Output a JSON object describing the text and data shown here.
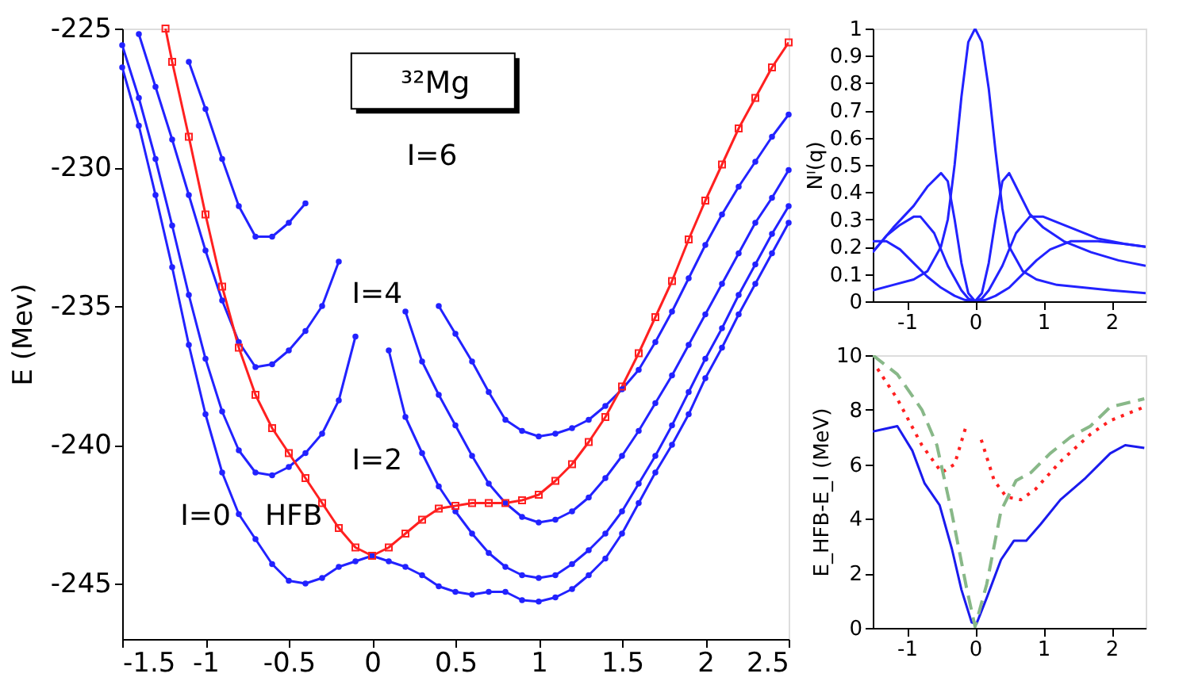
{
  "chart_data": [
    {
      "type": "line",
      "ylabel": "E (Mev)",
      "xlim": [
        -1.5,
        2.5
      ],
      "ylim": [
        -247,
        -225
      ],
      "xticks": [
        -1.5,
        -1,
        -0.5,
        0,
        0.5,
        1,
        1.5,
        2,
        2.5
      ],
      "yticks": [
        -245,
        -240,
        -235,
        -230,
        -225
      ],
      "grid": false,
      "legend": false,
      "line_style": "solid",
      "series": [
        {
          "color": "#2222ff",
          "marker": "circle",
          "x": [
            -1.5,
            -1.4,
            -1.3,
            -1.2,
            -1.1,
            -1.0,
            -0.9,
            -0.8,
            -0.7,
            -0.6,
            -0.5,
            -0.4,
            -0.3,
            -0.2,
            -0.1,
            0,
            0.1,
            0.2,
            0.3,
            0.4,
            0.5,
            0.6,
            0.7,
            0.8,
            0.9,
            1.0,
            1.1,
            1.2,
            1.3,
            1.4,
            1.5,
            1.6,
            1.7,
            1.8,
            1.9,
            2.0,
            2.1,
            2.2,
            2.3,
            2.4,
            2.5
          ],
          "values": [
            -226.4,
            -228.5,
            -231.0,
            -233.6,
            -236.4,
            -238.9,
            -241.0,
            -242.5,
            -243.4,
            -244.3,
            -244.9,
            -245.0,
            -244.8,
            -244.4,
            -244.2,
            -244.0,
            -244.2,
            -244.4,
            -244.7,
            -245.1,
            -245.3,
            -245.4,
            -245.3,
            -245.3,
            -245.6,
            -245.65,
            -245.5,
            -245.2,
            -244.7,
            -244.1,
            -243.2,
            -242.1,
            -241.0,
            -240.0,
            -238.9,
            -237.6,
            -236.5,
            -235.3,
            -234.2,
            -233.1,
            -232.0
          ]
        },
        {
          "color": "#2222ff",
          "marker": "circle",
          "x": [
            -1.5,
            -1.4,
            -1.3,
            -1.2,
            -1.1,
            -1.0,
            -0.9,
            -0.8,
            -0.7,
            -0.6,
            -0.5,
            -0.4,
            -0.3,
            -0.2,
            -0.1
          ],
          "values": [
            -225.6,
            -227.5,
            -229.7,
            -232.1,
            -234.6,
            -236.9,
            -238.8,
            -240.2,
            -241.0,
            -241.1,
            -240.8,
            -240.3,
            -239.6,
            -238.4,
            -236.1
          ]
        },
        {
          "color": "#2222ff",
          "marker": "circle",
          "x": [
            -1.4,
            -1.3,
            -1.2,
            -1.1,
            -1.0,
            -0.9,
            -0.8,
            -0.7,
            -0.6,
            -0.5,
            -0.4,
            -0.3,
            -0.2
          ],
          "values": [
            -225.2,
            -227.1,
            -229.0,
            -231.0,
            -233.0,
            -234.8,
            -236.3,
            -237.2,
            -237.1,
            -236.6,
            -235.9,
            -235.0,
            -233.4
          ]
        },
        {
          "color": "#2222ff",
          "marker": "circle",
          "x": [
            -1.1,
            -1.0,
            -0.9,
            -0.8,
            -0.7,
            -0.6,
            -0.5,
            -0.4
          ],
          "values": [
            -226.2,
            -227.9,
            -229.7,
            -231.4,
            -232.5,
            -232.5,
            -232.0,
            -231.3
          ]
        },
        {
          "color": "#2222ff",
          "marker": "circle",
          "x": [
            0.1,
            0.2,
            0.3,
            0.4,
            0.5,
            0.6,
            0.7,
            0.8,
            0.9,
            1.0,
            1.1,
            1.2,
            1.3,
            1.4,
            1.5,
            1.6,
            1.7,
            1.8,
            1.9,
            2.0,
            2.1,
            2.2,
            2.3,
            2.4,
            2.5
          ],
          "values": [
            -236.6,
            -239.0,
            -240.3,
            -241.5,
            -242.4,
            -243.2,
            -243.9,
            -244.4,
            -244.7,
            -244.8,
            -244.7,
            -244.3,
            -243.8,
            -243.2,
            -242.4,
            -241.4,
            -240.4,
            -239.3,
            -238.1,
            -236.9,
            -235.8,
            -234.6,
            -233.5,
            -232.4,
            -231.4
          ]
        },
        {
          "color": "#2222ff",
          "marker": "circle",
          "x": [
            0.2,
            0.3,
            0.4,
            0.5,
            0.6,
            0.7,
            0.8,
            0.9,
            1.0,
            1.1,
            1.2,
            1.3,
            1.4,
            1.5,
            1.6,
            1.7,
            1.8,
            1.9,
            2.0,
            2.1,
            2.2,
            2.3,
            2.4,
            2.5
          ],
          "values": [
            -235.2,
            -237.0,
            -238.2,
            -239.3,
            -240.4,
            -241.4,
            -242.1,
            -242.6,
            -242.8,
            -242.7,
            -242.4,
            -241.9,
            -241.2,
            -240.4,
            -239.5,
            -238.5,
            -237.5,
            -236.4,
            -235.3,
            -234.2,
            -233.1,
            -232.0,
            -231.1,
            -230.1
          ]
        },
        {
          "color": "#2222ff",
          "marker": "circle",
          "x": [
            0.4,
            0.5,
            0.6,
            0.7,
            0.8,
            0.9,
            1.0,
            1.1,
            1.2,
            1.3,
            1.4,
            1.5,
            1.6,
            1.7,
            1.8,
            1.9,
            2.0,
            2.1,
            2.2,
            2.3,
            2.4,
            2.5
          ],
          "values": [
            -235.0,
            -236.0,
            -237.0,
            -238.1,
            -239.1,
            -239.5,
            -239.7,
            -239.6,
            -239.4,
            -239.1,
            -238.6,
            -238.0,
            -237.3,
            -236.3,
            -235.2,
            -234.0,
            -232.8,
            -231.7,
            -230.7,
            -229.8,
            -228.9,
            -228.1
          ]
        },
        {
          "color": "#ff2020",
          "marker": "square",
          "x": [
            -1.24,
            -1.2,
            -1.1,
            -1.0,
            -0.9,
            -0.8,
            -0.7,
            -0.6,
            -0.5,
            -0.4,
            -0.3,
            -0.2,
            -0.1,
            0,
            0.1,
            0.2,
            0.3,
            0.4,
            0.5,
            0.6,
            0.7,
            0.8,
            0.9,
            1.0,
            1.1,
            1.2,
            1.3,
            1.4,
            1.5,
            1.6,
            1.7,
            1.8,
            1.9,
            2.0,
            2.1,
            2.2,
            2.3,
            2.4,
            2.5
          ],
          "values": [
            -225.0,
            -226.2,
            -228.9,
            -231.7,
            -234.3,
            -236.5,
            -238.2,
            -239.4,
            -240.3,
            -241.2,
            -242.1,
            -243.0,
            -243.7,
            -244.0,
            -243.7,
            -243.2,
            -242.7,
            -242.3,
            -242.2,
            -242.1,
            -242.1,
            -242.1,
            -242.0,
            -241.8,
            -241.3,
            -240.7,
            -239.9,
            -239.0,
            -237.9,
            -236.7,
            -235.4,
            -234.1,
            -232.6,
            -231.2,
            -229.9,
            -228.6,
            -227.5,
            -226.4,
            -225.5
          ]
        }
      ],
      "annotations": [
        "³²Mg",
        "I=6",
        "I=4",
        "I=2",
        "I=0",
        "HFB"
      ]
    },
    {
      "type": "line",
      "ylabel": "Nᴵ(q)",
      "xlim": [
        -1.5,
        2.5
      ],
      "ylim": [
        0,
        1
      ],
      "xticks": [
        -1,
        0,
        1,
        2
      ],
      "yticks": [
        0,
        0.1,
        0.2,
        0.3,
        0.4,
        0.5,
        0.6,
        0.7,
        0.8,
        0.9,
        1
      ],
      "grid": false,
      "legend": false,
      "line_style": "solid",
      "series": [
        {
          "color": "#2222ff",
          "x": [
            -1.5,
            -1.2,
            -0.9,
            -0.7,
            -0.5,
            -0.4,
            -0.3,
            -0.2,
            -0.1,
            0,
            0.1,
            0.2,
            0.3,
            0.4,
            0.5,
            0.7,
            0.9,
            1.2,
            1.6,
            2.0,
            2.5
          ],
          "values": [
            0.04,
            0.06,
            0.08,
            0.11,
            0.2,
            0.3,
            0.5,
            0.75,
            0.95,
            1.0,
            0.95,
            0.78,
            0.55,
            0.34,
            0.2,
            0.11,
            0.08,
            0.06,
            0.05,
            0.04,
            0.03
          ]
        },
        {
          "color": "#2222ff",
          "x": [
            -1.5,
            -1.2,
            -0.9,
            -0.7,
            -0.5,
            -0.4,
            -0.3,
            -0.2,
            -0.1,
            0,
            0.1,
            0.2,
            0.3,
            0.4,
            0.5,
            0.6,
            0.8,
            1.0,
            1.3,
            1.7,
            2.1,
            2.5
          ],
          "values": [
            0.18,
            0.27,
            0.35,
            0.42,
            0.47,
            0.44,
            0.3,
            0.14,
            0.03,
            0,
            0.03,
            0.14,
            0.3,
            0.44,
            0.47,
            0.42,
            0.32,
            0.27,
            0.22,
            0.18,
            0.15,
            0.13
          ]
        },
        {
          "color": "#2222ff",
          "x": [
            -1.5,
            -1.3,
            -1.1,
            -0.9,
            -0.8,
            -0.6,
            -0.4,
            -0.2,
            -0.1,
            0,
            0.1,
            0.2,
            0.4,
            0.6,
            0.8,
            1.0,
            1.4,
            1.8,
            2.2,
            2.5
          ],
          "values": [
            0.18,
            0.24,
            0.28,
            0.31,
            0.31,
            0.25,
            0.13,
            0.04,
            0.01,
            0,
            0.01,
            0.04,
            0.13,
            0.25,
            0.31,
            0.31,
            0.27,
            0.23,
            0.21,
            0.2
          ]
        },
        {
          "color": "#2222ff",
          "x": [
            -1.5,
            -1.3,
            -1.1,
            -0.9,
            -0.7,
            -0.5,
            -0.3,
            -0.15,
            0,
            0.15,
            0.3,
            0.5,
            0.7,
            0.9,
            1.1,
            1.4,
            1.8,
            2.2,
            2.5
          ],
          "values": [
            0.22,
            0.22,
            0.19,
            0.14,
            0.09,
            0.05,
            0.02,
            0.005,
            0,
            0.005,
            0.02,
            0.05,
            0.1,
            0.15,
            0.19,
            0.22,
            0.22,
            0.21,
            0.2
          ]
        }
      ]
    },
    {
      "type": "line",
      "ylabel": "E_HFB-E_I (MeV)",
      "xlim": [
        -1.5,
        2.5
      ],
      "ylim": [
        0,
        10
      ],
      "xticks": [
        -1,
        0,
        1,
        2
      ],
      "yticks": [
        0,
        2,
        4,
        6,
        8,
        10
      ],
      "grid": false,
      "legend": false,
      "series": [
        {
          "color": "#1a1aee",
          "line_style": "solid",
          "x": [
            -1.5,
            -1.14,
            -0.92,
            -0.74,
            -0.52,
            -0.34,
            -0.2,
            -0.05,
            0.02,
            0.17,
            0.38,
            0.57,
            0.75,
            0.96,
            1.25,
            1.62,
            1.98,
            2.2,
            2.48
          ],
          "values": [
            7.2,
            7.4,
            6.5,
            5.3,
            4.5,
            2.9,
            1.4,
            0.2,
            0.15,
            1.1,
            2.5,
            3.2,
            3.2,
            3.8,
            4.7,
            5.5,
            6.4,
            6.7,
            6.6
          ]
        },
        {
          "color": "#88b888",
          "line_style": "dashed",
          "x": [
            -1.5,
            -1.14,
            -0.78,
            -0.56,
            -0.34,
            -0.12,
            0,
            0.17,
            0.38,
            0.6,
            0.82,
            1.1,
            1.4,
            1.69,
            1.98,
            2.48
          ],
          "values": [
            10.0,
            9.3,
            8.0,
            6.7,
            4.2,
            1.4,
            0.05,
            1.6,
            4.3,
            5.4,
            5.7,
            6.4,
            7.0,
            7.4,
            8.1,
            8.4
          ]
        },
        {
          "color": "#ff2020",
          "line_style": "dotted",
          "x": [
            -1.43,
            -1.14,
            -0.78,
            -0.49,
            -0.3,
            -0.12,
            0,
            0.09,
            0.28,
            0.46,
            0.67,
            0.89,
            1.25,
            1.69,
            1.98,
            2.48
          ],
          "values": [
            9.5,
            8.4,
            6.7,
            5.7,
            6.0,
            7.5,
            null,
            6.9,
            5.4,
            4.8,
            4.7,
            5.1,
            6.1,
            7.1,
            7.6,
            8.1
          ]
        }
      ]
    }
  ]
}
